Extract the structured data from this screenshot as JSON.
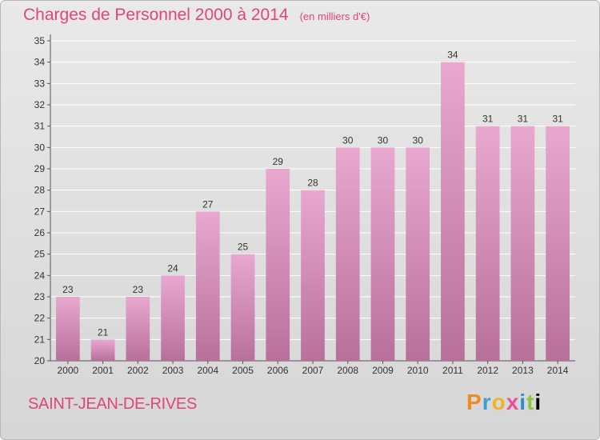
{
  "header": {
    "title": "Charges de Personnel 2000 à 2014",
    "unit": "(en milliers d'€)"
  },
  "footer": {
    "commune": "SAINT-JEAN-DE-RIVES",
    "logo_text": "Proxiti"
  },
  "colors": {
    "accent": "#e0457a",
    "bar_top": "#e8a8cf",
    "bar_bottom": "#b8709a",
    "grid": "#ffffff"
  },
  "chart_data": {
    "type": "bar",
    "categories": [
      "2000",
      "2001",
      "2002",
      "2003",
      "2004",
      "2005",
      "2006",
      "2007",
      "2008",
      "2009",
      "2010",
      "2011",
      "2012",
      "2013",
      "2014"
    ],
    "values": [
      23,
      21,
      23,
      24,
      27,
      25,
      29,
      28,
      30,
      30,
      30,
      34,
      31,
      31,
      31
    ],
    "title": "Charges de Personnel 2000 à 2014",
    "ylabel": "",
    "xlabel": "",
    "ylim": [
      20,
      35
    ],
    "yticks": [
      20,
      21,
      22,
      23,
      24,
      25,
      26,
      27,
      28,
      29,
      30,
      31,
      32,
      33,
      34,
      35
    ],
    "grid": true
  }
}
